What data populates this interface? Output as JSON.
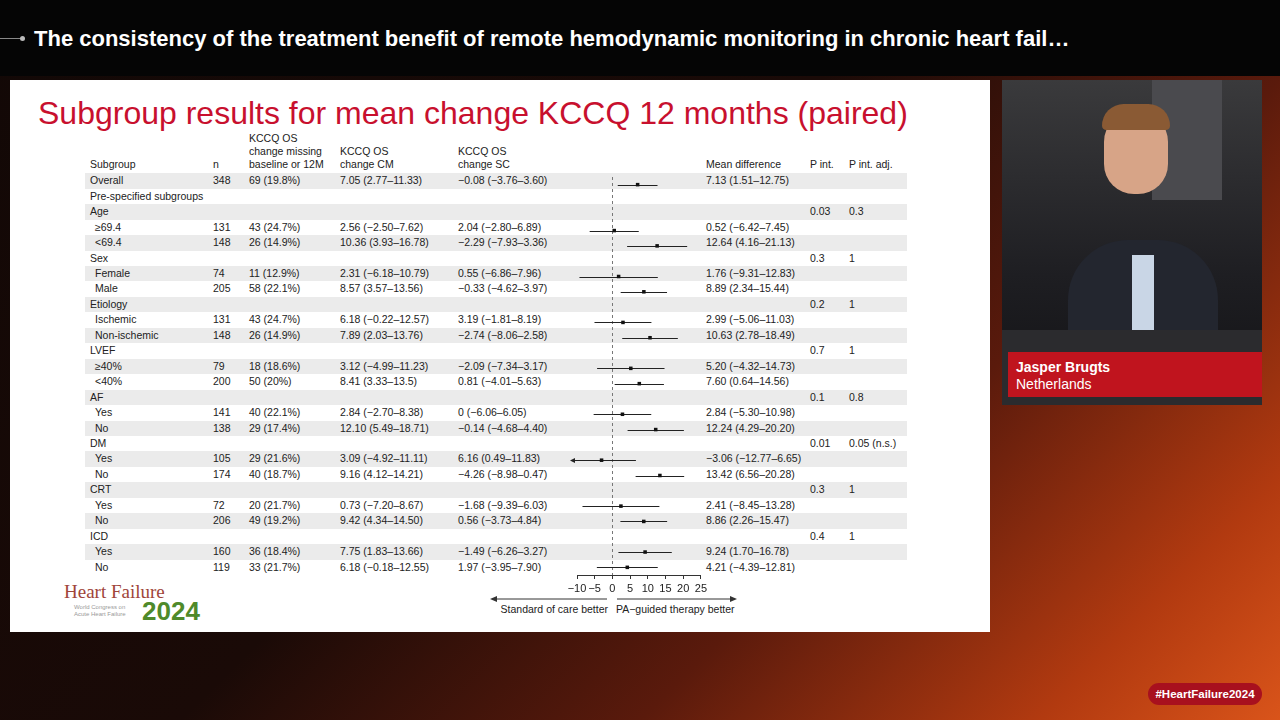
{
  "video": {
    "title": "The consistency of the treatment benefit of remote hemodynamic monitoring in chronic heart fail…",
    "speaker": {
      "name": "Jasper Brugts",
      "country": "Netherlands"
    },
    "hashtag": "#HeartFailure2024"
  },
  "slide": {
    "title": "Subgroup results for mean change KCCQ 12 months (paired)",
    "logo": {
      "name": "Heart Failure",
      "subtitle": "World Congress on Acute Heart Failure",
      "year": "2024"
    }
  },
  "table": {
    "columns": [
      "Subgroup",
      "n",
      "KCCQ OS\nchange missing\nbaseline or 12M",
      "KCCQ OS\nchange CM",
      "KCCQ OS\nchange SC",
      "Mean difference",
      "P int.",
      "P int. adj."
    ],
    "overall": {
      "label": "Overall",
      "n": 348,
      "missing": "69 (19.8%)",
      "cm": "7.05 (2.77–11.33)",
      "sc": "−0.08 (−3.76–3.60)",
      "md": "7.13 (1.51–12.75)"
    },
    "section": "Pre-specified subgroups",
    "groups": [
      {
        "name": "Age",
        "p_int": "0.03",
        "p_int_adj": "0.3",
        "rows": [
          {
            "label": "≥69.4",
            "n": 131,
            "missing": "43 (24.7%)",
            "cm": "2.56 (−2.50–7.62)",
            "sc": "2.04 (−2.80–6.89)",
            "md": "0.52 (−6.42–7.45)"
          },
          {
            "label": "<69.4",
            "n": 148,
            "missing": "26 (14.9%)",
            "cm": "10.36 (3.93–16.78)",
            "sc": "−2.29 (−7.93–3.36)",
            "md": "12.64 (4.16–21.13)"
          }
        ]
      },
      {
        "name": "Sex",
        "p_int": "0.3",
        "p_int_adj": "1",
        "rows": [
          {
            "label": "Female",
            "n": 74,
            "missing": "11 (12.9%)",
            "cm": "2.31 (−6.18–10.79)",
            "sc": "0.55 (−6.86–7.96)",
            "md": "1.76 (−9.31–12.83)"
          },
          {
            "label": "Male",
            "n": 205,
            "missing": "58 (22.1%)",
            "cm": "8.57 (3.57–13.56)",
            "sc": "−0.33 (−4.62–3.97)",
            "md": "8.89 (2.34–15.44)"
          }
        ]
      },
      {
        "name": "Etiology",
        "p_int": "0.2",
        "p_int_adj": "1",
        "rows": [
          {
            "label": "Ischemic",
            "n": 131,
            "missing": "43 (24.7%)",
            "cm": "6.18 (−0.22–12.57)",
            "sc": "3.19 (−1.81–8.19)",
            "md": "2.99 (−5.06–11.03)"
          },
          {
            "label": "Non-ischemic",
            "n": 148,
            "missing": "26 (14.9%)",
            "cm": "7.89 (2.03–13.76)",
            "sc": "−2.74 (−8.06–2.58)",
            "md": "10.63 (2.78–18.49)"
          }
        ]
      },
      {
        "name": "LVEF",
        "p_int": "0.7",
        "p_int_adj": "1",
        "rows": [
          {
            "label": "≥40%",
            "n": 79,
            "missing": "18 (18.6%)",
            "cm": "3.12 (−4.99–11.23)",
            "sc": "−2.09 (−7.34–3.17)",
            "md": "5.20 (−4.32–14.73)"
          },
          {
            "label": "<40%",
            "n": 200,
            "missing": "50 (20%)",
            "cm": "8.41 (3.33–13.5)",
            "sc": "0.81 (−4.01–5.63)",
            "md": "7.60 (0.64–14.56)"
          }
        ]
      },
      {
        "name": "AF",
        "p_int": "0.1",
        "p_int_adj": "0.8",
        "rows": [
          {
            "label": "Yes",
            "n": 141,
            "missing": "40 (22.1%)",
            "cm": "2.84 (−2.70–8.38)",
            "sc": "0 (−6.06–6.05)",
            "md": "2.84 (−5.30–10.98)"
          },
          {
            "label": "No",
            "n": 138,
            "missing": "29 (17.4%)",
            "cm": "12.10 (5.49–18.71)",
            "sc": "−0.14 (−4.68–4.40)",
            "md": "12.24 (4.29–20.20)"
          }
        ]
      },
      {
        "name": "DM",
        "p_int": "0.01",
        "p_int_adj": "0.05 (n.s.)",
        "rows": [
          {
            "label": "Yes",
            "n": 105,
            "missing": "29 (21.6%)",
            "cm": "3.09 (−4.92–11.11)",
            "sc": "6.16 (0.49–11.83)",
            "md": "−3.06 (−12.77–6.65)"
          },
          {
            "label": "No",
            "n": 174,
            "missing": "40 (18.7%)",
            "cm": "9.16 (4.12–14.21)",
            "sc": "−4.26 (−8.98–0.47)",
            "md": "13.42 (6.56–20.28)"
          }
        ]
      },
      {
        "name": "CRT",
        "p_int": "0.3",
        "p_int_adj": "1",
        "rows": [
          {
            "label": "Yes",
            "n": 72,
            "missing": "20 (21.7%)",
            "cm": "0.73 (−7.20–8.67)",
            "sc": "−1.68 (−9.39–6.03)",
            "md": "2.41 (−8.45–13.28)"
          },
          {
            "label": "No",
            "n": 206,
            "missing": "49 (19.2%)",
            "cm": "9.42 (4.34–14.50)",
            "sc": "0.56 (−3.73–4.84)",
            "md": "8.86 (2.26–15.47)"
          }
        ]
      },
      {
        "name": "ICD",
        "p_int": "0.4",
        "p_int_adj": "1",
        "rows": [
          {
            "label": "Yes",
            "n": 160,
            "missing": "36 (18.4%)",
            "cm": "7.75 (1.83–13.66)",
            "sc": "−1.49 (−6.26–3.27)",
            "md": "9.24 (1.70–16.78)"
          },
          {
            "label": "No",
            "n": 119,
            "missing": "33 (21.7%)",
            "cm": "6.18 (−0.18–12.55)",
            "sc": "1.97 (−3.95–7.90)",
            "md": "4.21 (−4.39–12.81)"
          }
        ]
      }
    ]
  },
  "chart_data": {
    "type": "forest",
    "xlim": [
      -10,
      25
    ],
    "xticks": [
      {
        "value": -10,
        "label": "−10"
      },
      {
        "value": -5,
        "label": "−5"
      },
      0,
      5,
      10,
      15,
      20,
      25
    ],
    "grid": false,
    "reference_x": 0,
    "annotations": [
      "Standard of care better",
      "PA−guided therapy better"
    ],
    "values": [
      7.13,
      null,
      null,
      0.52,
      12.64,
      null,
      1.76,
      8.89,
      null,
      2.99,
      10.63,
      null,
      5.2,
      7.6,
      null,
      2.84,
      12.24,
      null,
      -3.06,
      13.42,
      null,
      2.41,
      8.86,
      null,
      9.24,
      4.21
    ],
    "ci_low": [
      1.51,
      null,
      null,
      -6.42,
      4.16,
      null,
      -9.31,
      2.34,
      null,
      -5.06,
      2.78,
      null,
      -4.32,
      0.64,
      null,
      -5.3,
      4.29,
      null,
      -12.77,
      6.56,
      null,
      -8.45,
      2.26,
      null,
      1.7,
      -4.39
    ],
    "ci_high": [
      12.75,
      null,
      null,
      7.45,
      21.13,
      null,
      12.83,
      15.44,
      null,
      11.03,
      18.49,
      null,
      14.73,
      14.56,
      null,
      10.98,
      20.2,
      null,
      6.65,
      20.28,
      null,
      13.28,
      15.47,
      null,
      16.78,
      12.81
    ]
  }
}
